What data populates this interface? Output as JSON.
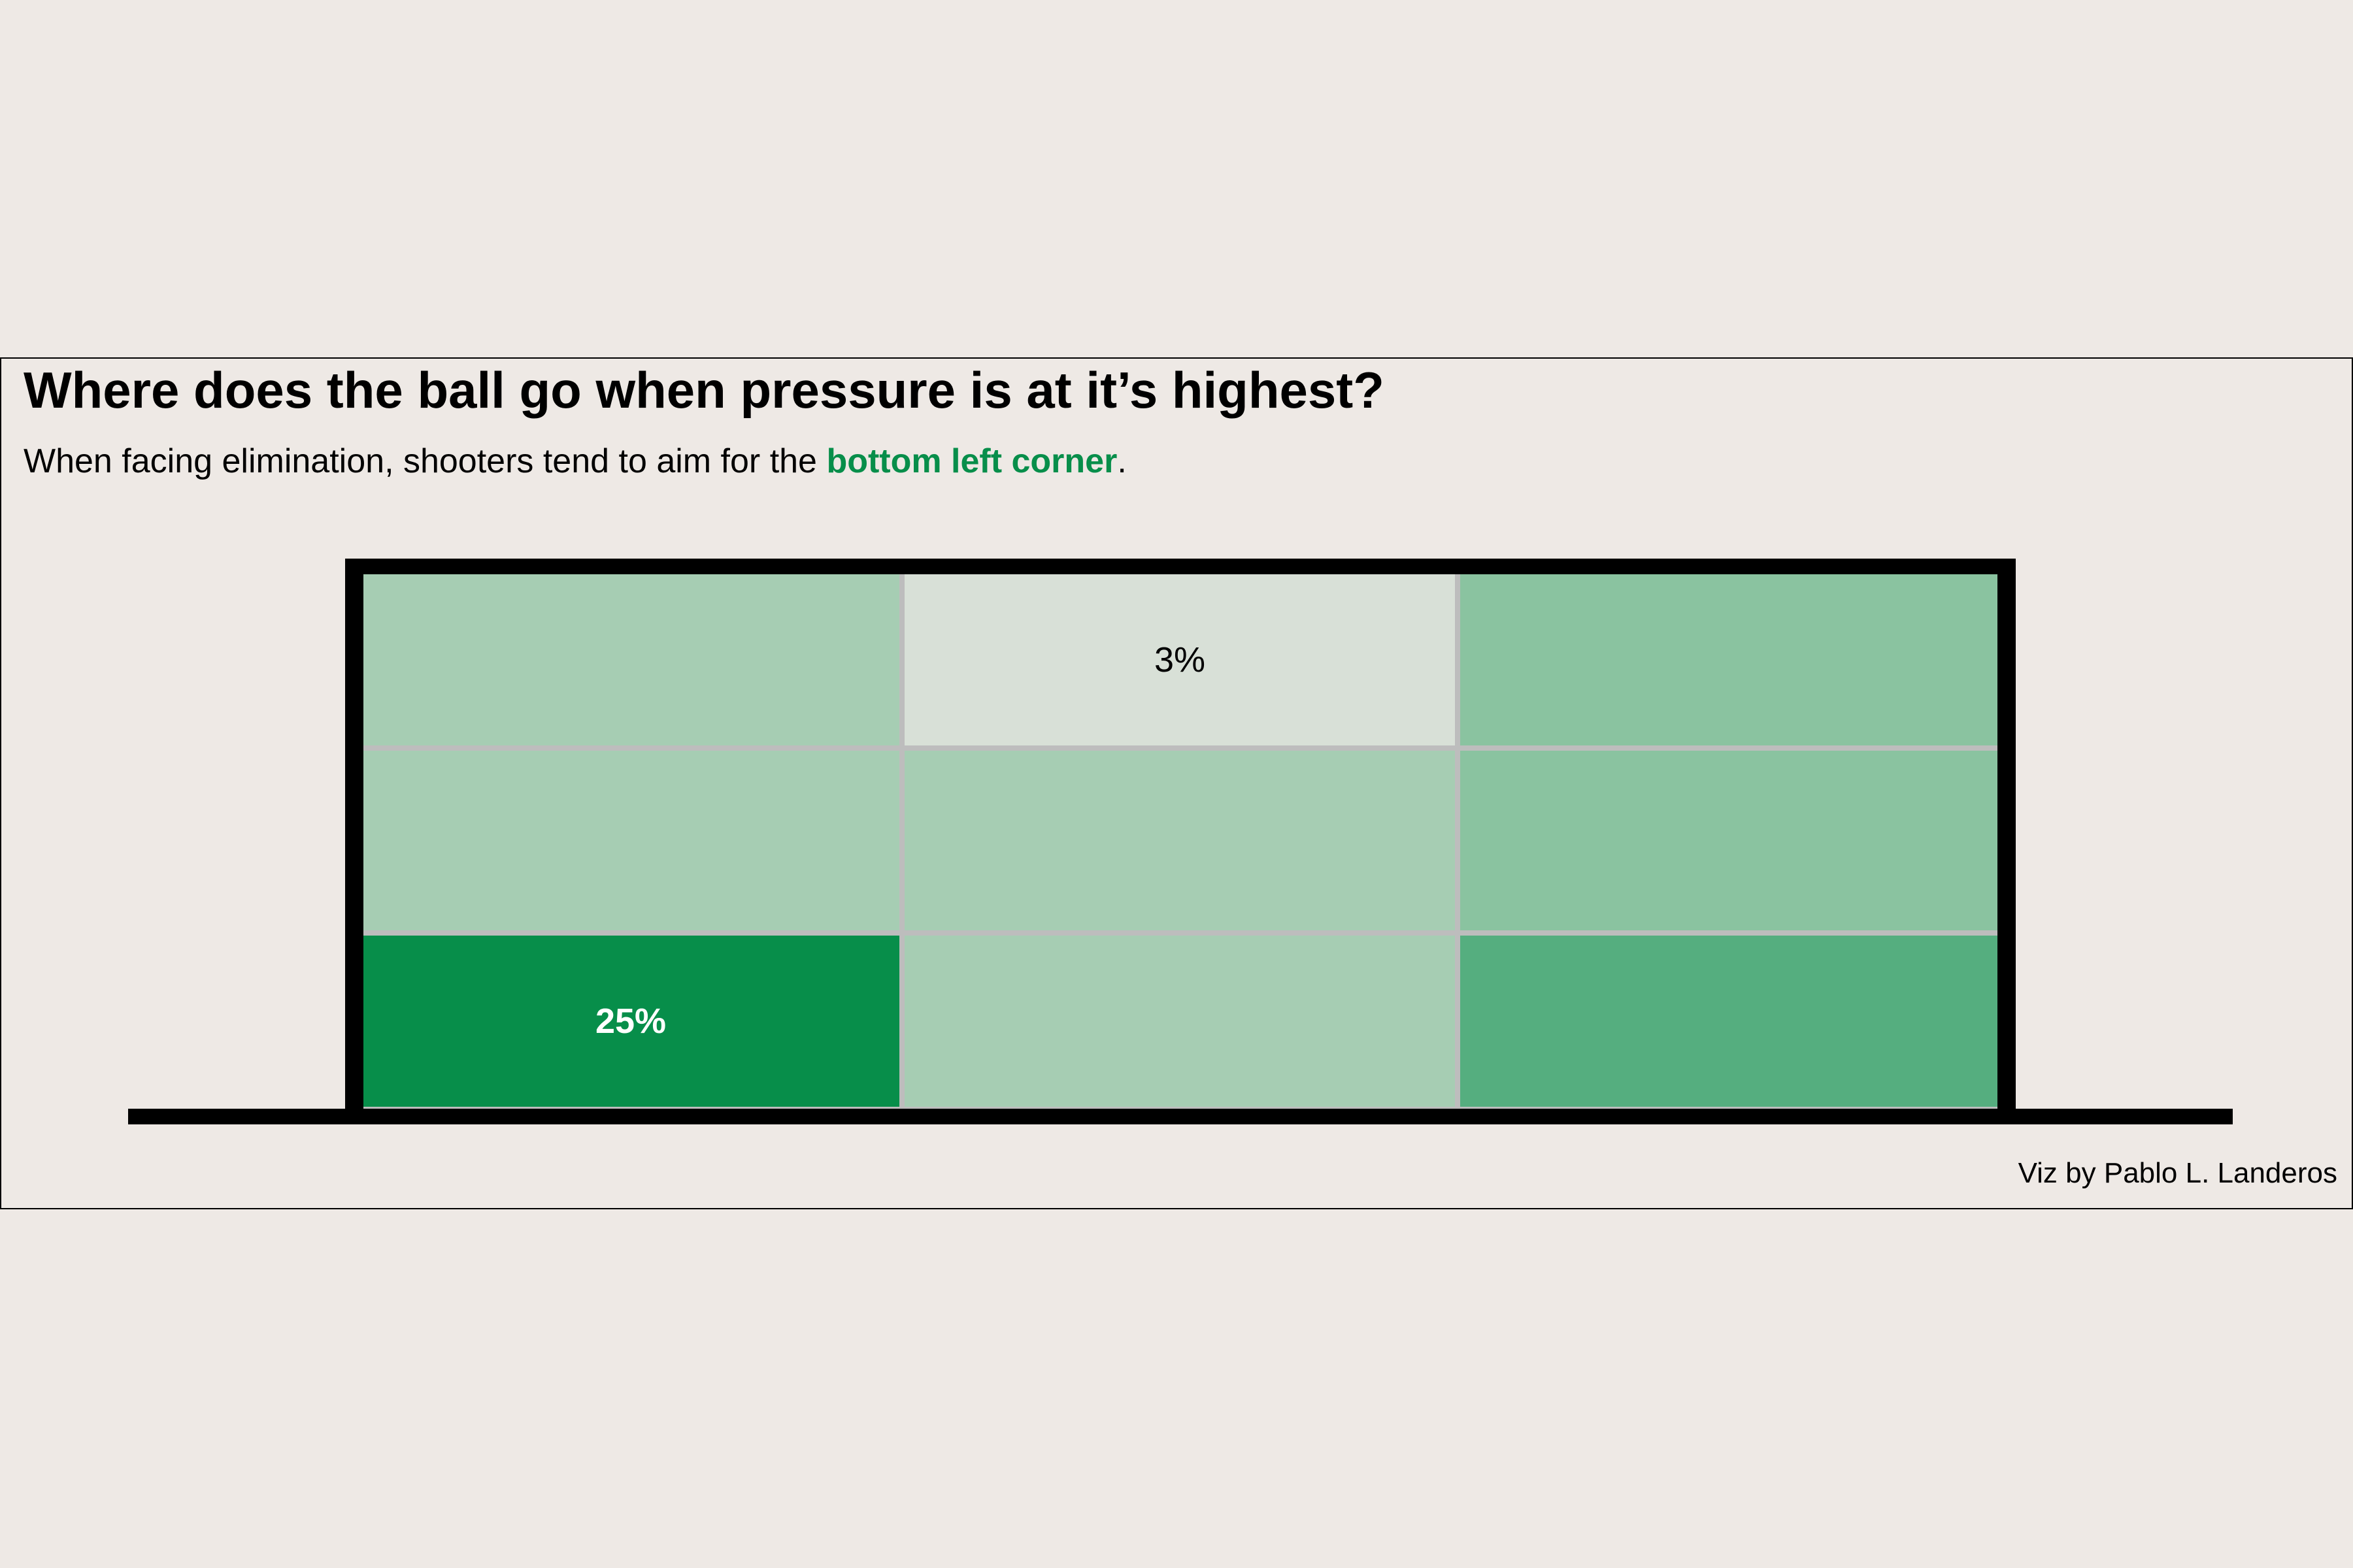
{
  "title": "Where does the ball go when pressure is at it’s highest?",
  "subtitle": {
    "prefix": "When facing elimination, shooters tend to aim for the ",
    "highlight": "bottom left corner",
    "suffix": ".",
    "highlight_color": "#078E4A"
  },
  "caption": "Viz by Pablo L. Landeros",
  "colors": {
    "background": "#EEE9E5",
    "frame": "#000000",
    "cell_border": "#BDBDBD",
    "label_dark": "#000000",
    "label_light": "#FFFFFF"
  },
  "chart_data": {
    "type": "heatmap",
    "rows": [
      "top",
      "middle",
      "bottom"
    ],
    "columns": [
      "left",
      "center",
      "right"
    ],
    "cells": [
      {
        "row": "top",
        "col": "left",
        "fill": "#A6CDB3",
        "label": ""
      },
      {
        "row": "top",
        "col": "center",
        "fill": "#D8E0D7",
        "label": "3%"
      },
      {
        "row": "top",
        "col": "right",
        "fill": "#8AC3A0",
        "label": ""
      },
      {
        "row": "middle",
        "col": "left",
        "fill": "#A6CDB3",
        "label": ""
      },
      {
        "row": "middle",
        "col": "center",
        "fill": "#A6CDB3",
        "label": ""
      },
      {
        "row": "middle",
        "col": "right",
        "fill": "#8AC3A0",
        "label": ""
      },
      {
        "row": "bottom",
        "col": "left",
        "fill": "#078E4A",
        "label": "25%"
      },
      {
        "row": "bottom",
        "col": "center",
        "fill": "#A6CDB3",
        "label": ""
      },
      {
        "row": "bottom",
        "col": "right",
        "fill": "#55AE7F",
        "label": ""
      }
    ],
    "labeled_values": {
      "top-center": 3,
      "bottom-left": 25
    },
    "unit": "%"
  }
}
